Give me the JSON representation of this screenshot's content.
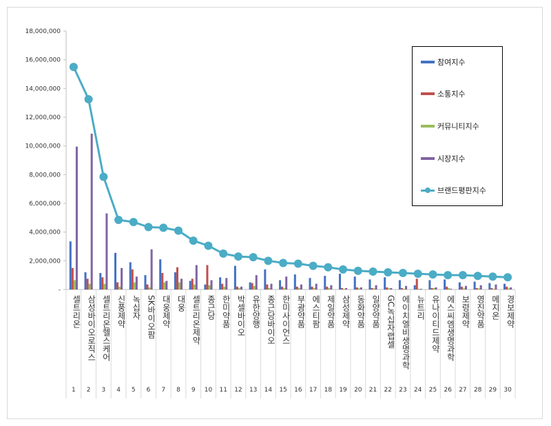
{
  "chart_data": {
    "type": "bar",
    "title": "",
    "xlabel": "",
    "ylabel": "",
    "ylim": [
      0,
      18000000
    ],
    "yticks": [
      0,
      2000000,
      4000000,
      6000000,
      8000000,
      10000000,
      12000000,
      14000000,
      16000000,
      18000000
    ],
    "ytick_labels": [
      "-",
      "2,000,000",
      "4,000,000",
      "6,000,000",
      "8,000,000",
      "10,000,000",
      "12,000,000",
      "14,000,000",
      "16,000,000",
      "18,000,000"
    ],
    "grid": false,
    "legend_position": "top-right",
    "categories": [
      "셀트리온",
      "삼성바이오로직스",
      "셀트리온헬스케어",
      "신풍제약",
      "녹십자",
      "SK바이오팜",
      "대웅제약",
      "대웅",
      "셀트리온제약",
      "종근당",
      "한미약품",
      "박셀바이오",
      "유한양행",
      "종근당바이오",
      "한미사이언스",
      "부광약품",
      "에스티팜",
      "제일약품",
      "삼성제약",
      "동화약품",
      "일양약품",
      "GC녹십자랩셀",
      "에이치엘비생명과학",
      "뉴트리",
      "유나이티드제약",
      "에스씨엠생명과학",
      "보령제약",
      "영진약품",
      "메지온",
      "경보제약"
    ],
    "ranks": [
      "1",
      "2",
      "3",
      "4",
      "5",
      "6",
      "7",
      "8",
      "9",
      "10",
      "11",
      "12",
      "13",
      "14",
      "15",
      "16",
      "17",
      "18",
      "19",
      "20",
      "21",
      "22",
      "23",
      "24",
      "25",
      "26",
      "27",
      "28",
      "29",
      "30"
    ],
    "series": [
      {
        "name": "참여지수",
        "kind": "bar",
        "color": "#4472c4",
        "values": [
          3350000,
          1200000,
          1150000,
          2550000,
          1900000,
          1000000,
          2100000,
          1200000,
          600000,
          350000,
          850000,
          1650000,
          500000,
          1400000,
          650000,
          1050000,
          800000,
          950000,
          1100000,
          900000,
          700000,
          850000,
          650000,
          300000,
          650000,
          700000,
          500000,
          550000,
          450000,
          400000
        ]
      },
      {
        "name": "소통지수",
        "kind": "bar",
        "color": "#c0504d",
        "values": [
          1500000,
          750000,
          850000,
          500000,
          1400000,
          350000,
          1150000,
          1550000,
          750000,
          1700000,
          400000,
          200000,
          450000,
          350000,
          200000,
          200000,
          200000,
          200000,
          100000,
          150000,
          100000,
          150000,
          100000,
          750000,
          100000,
          200000,
          200000,
          100000,
          100000,
          200000
        ]
      },
      {
        "name": "커뮤니티지수",
        "kind": "bar",
        "color": "#9bbb59",
        "values": [
          650000,
          400000,
          400000,
          200000,
          500000,
          150000,
          500000,
          500000,
          350000,
          300000,
          200000,
          100000,
          250000,
          100000,
          100000,
          100000,
          100000,
          100000,
          50000,
          80000,
          80000,
          80000,
          50000,
          50000,
          100000,
          100000,
          80000,
          80000,
          50000,
          80000
        ]
      },
      {
        "name": "시장지수",
        "kind": "bar",
        "color": "#8064a2",
        "values": [
          9950000,
          10850000,
          5300000,
          1500000,
          900000,
          2800000,
          600000,
          750000,
          1700000,
          650000,
          800000,
          200000,
          1000000,
          400000,
          900000,
          350000,
          400000,
          300000,
          100000,
          150000,
          300000,
          100000,
          250000,
          50000,
          150000,
          50000,
          250000,
          300000,
          350000,
          150000
        ]
      },
      {
        "name": "브랜드평판지수",
        "kind": "line",
        "color": "#4bacc6",
        "values": [
          15500000,
          13250000,
          7850000,
          4850000,
          4700000,
          4350000,
          4300000,
          4100000,
          3400000,
          3050000,
          2500000,
          2300000,
          2250000,
          2000000,
          1850000,
          1800000,
          1650000,
          1550000,
          1400000,
          1300000,
          1250000,
          1200000,
          1150000,
          1100000,
          1050000,
          1000000,
          1000000,
          950000,
          900000,
          850000
        ]
      }
    ]
  }
}
